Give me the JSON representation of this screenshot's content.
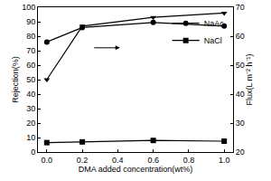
{
  "chart_data": {
    "type": "line",
    "x_label": "DMA added concentration(wt%)",
    "y_label": "Rejection(%)",
    "y2_label": "Flux(L m⁻² h⁻¹)",
    "x": [
      0.0,
      0.2,
      0.6,
      1.0
    ],
    "series": [
      {
        "name": "NaAc",
        "color": "#000000",
        "marker": "circle",
        "values": [
          76,
          86,
          89.5,
          87
        ]
      },
      {
        "name": "NaCl",
        "color": "#000000",
        "marker": "square",
        "values": [
          6.5,
          7,
          8,
          7.5
        ]
      },
      {
        "color": "#000000",
        "marker": "triangle-down",
        "axis": "y2",
        "values": [
          45,
          63.5,
          66.5,
          68
        ]
      }
    ],
    "xlim": [
      -0.05,
      1.05
    ],
    "xticks": [
      {
        "value": 0,
        "label": "0.0"
      },
      {
        "value": 0.2,
        "label": "0.2"
      },
      {
        "value": 0.4,
        "label": "0.4"
      },
      {
        "value": 0.6,
        "label": "0.6"
      },
      {
        "value": 0.8,
        "label": "0.8"
      },
      {
        "value": 1.0,
        "label": "1.0"
      }
    ],
    "ylim": [
      0,
      100
    ],
    "yticks": [
      0,
      10,
      20,
      30,
      40,
      50,
      60,
      70,
      80,
      90,
      100
    ],
    "y2lim": [
      20,
      70
    ],
    "y2ticks": [
      20,
      30,
      40,
      50,
      60,
      70
    ],
    "legend": "top right",
    "grid": false
  }
}
